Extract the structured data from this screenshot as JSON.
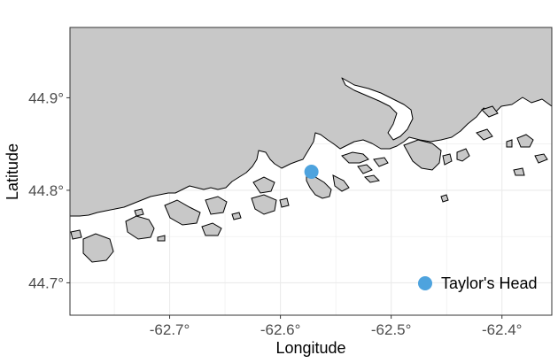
{
  "map": {
    "xlabel": "Longitude",
    "ylabel": "Latitude",
    "x_ticks": [
      {
        "value": -62.7,
        "label": "-62.7°"
      },
      {
        "value": -62.6,
        "label": "-62.6°"
      },
      {
        "value": -62.5,
        "label": "-62.5°"
      },
      {
        "value": -62.4,
        "label": "-62.4°"
      }
    ],
    "y_ticks": [
      {
        "value": 44.9,
        "label": "44.9°"
      },
      {
        "value": 44.8,
        "label": "44.8°"
      },
      {
        "value": 44.7,
        "label": "44.7°"
      }
    ],
    "xlim": [
      -62.79,
      -62.355
    ],
    "ylim": [
      44.665,
      44.976
    ],
    "land_color": "#c8c8c8",
    "water_color": "#ffffff",
    "grid": true,
    "grid_color": "#ebebeb",
    "legend_position": "bottom-right",
    "marker_color": "#4ea3de"
  },
  "points": [
    {
      "name": "Taylor's Head",
      "lon": -62.572,
      "lat": 44.82
    }
  ],
  "legend": {
    "label": "Taylor's Head",
    "color": "#4ea3de"
  }
}
